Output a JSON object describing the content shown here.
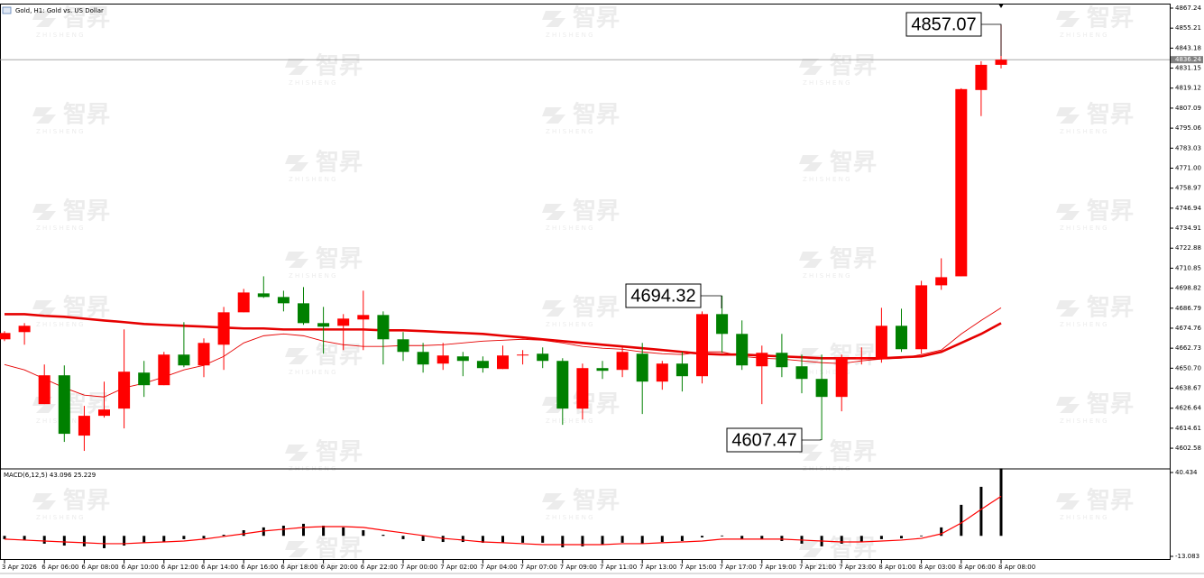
{
  "watermark": {
    "logo": "智昇",
    "tagline": "Z H I S H E N G"
  },
  "chart_data": [
    {
      "type": "candlestick",
      "title": "Gold, H1: Gold vs. US Dollar",
      "categories": [
        "3 Apr 2026",
        null,
        "6 Apr 06:00",
        null,
        "6 Apr 08:00",
        null,
        "6 Apr 10:00",
        null,
        "6 Apr 12:00",
        null,
        "6 Apr 14:00",
        null,
        "6 Apr 16:00",
        null,
        "6 Apr 18:00",
        null,
        "6 Apr 20:00",
        null,
        "6 Apr 22:00",
        null,
        "7 Apr 00:00",
        null,
        "7 Apr 02:00",
        null,
        "7 Apr 04:00",
        null,
        "7 Apr 07:00",
        null,
        "7 Apr 09:00",
        null,
        "7 Apr 11:00",
        null,
        "7 Apr 13:00",
        null,
        "7 Apr 15:00",
        null,
        "7 Apr 17:00",
        null,
        "7 Apr 19:00",
        null,
        "7 Apr 21:00",
        null,
        "7 Apr 23:00",
        null,
        "8 Apr 01:00",
        null,
        "8 Apr 03:00",
        null,
        "8 Apr 06:00",
        null,
        "8 Apr 08:00"
      ],
      "open": [
        4668.08,
        4672.41,
        4629.11,
        4646.43,
        4610.17,
        4622.08,
        4626.41,
        4648.05,
        4640.48,
        4658.88,
        4652.38,
        4664.83,
        4684.31,
        4695.68,
        4693.52,
        4689.73,
        4677.82,
        4676.2,
        4679.99,
        4682.69,
        4668.08,
        4660.5,
        4653.47,
        4657.8,
        4655.09,
        4650.22,
        4658.34,
        4659.42,
        4655.09,
        4626.41,
        4650.76,
        4649.68,
        4659.42,
        4642.64,
        4653.47,
        4645.89,
        4683.23,
        4671.33,
        4651.84,
        4659.96,
        4651.84,
        4644.27,
        4633.44,
        4656.17,
        4656.17,
        4676.2,
        4662.13,
        4700.55,
        4705.96,
        4817.99,
        4833.14
      ],
      "high": [
        4672.95,
        4677.82,
        4652.93,
        4652.38,
        4628.03,
        4642.64,
        4674.03,
        4655.09,
        4660.5,
        4678.36,
        4668.62,
        4687.56,
        4698.39,
        4705.96,
        4697.3,
        4699.47,
        4687.56,
        4683.23,
        4697.3,
        4684.86,
        4672.41,
        4665.91,
        4665.91,
        4660.5,
        4657.8,
        4664.29,
        4661.58,
        4663.21,
        4656.71,
        4653.47,
        4655.09,
        4663.21,
        4665.91,
        4655.09,
        4660.5,
        4684.86,
        4694.32,
        4679.44,
        4664.29,
        4671.33,
        4658.88,
        4658.88,
        4658.88,
        4663.21,
        4687.02,
        4686.48,
        4703.26,
        4716.79,
        4819.07,
        4835.31,
        4857.07
      ],
      "low": [
        4667.0,
        4664.83,
        4629.11,
        4606.38,
        4600.97,
        4620.99,
        4614.5,
        4633.44,
        4640.48,
        4651.3,
        4645.35,
        4649.68,
        4684.31,
        4692.97,
        4684.86,
        4676.74,
        4659.42,
        4661.58,
        4661.58,
        4652.93,
        4655.09,
        4648.05,
        4649.68,
        4645.89,
        4648.05,
        4650.22,
        4652.93,
        4650.76,
        4616.66,
        4619.91,
        4644.27,
        4645.35,
        4623.16,
        4637.77,
        4636.69,
        4641.56,
        4659.96,
        4649.68,
        4629.11,
        4645.35,
        4635.61,
        4607.47,
        4624.78,
        4652.93,
        4654.01,
        4660.5,
        4659.42,
        4697.84,
        4705.96,
        4802.3,
        4830.98
      ],
      "close": [
        4671.87,
        4676.2,
        4646.43,
        4611.25,
        4622.08,
        4625.87,
        4648.6,
        4640.48,
        4658.88,
        4652.38,
        4665.91,
        4684.31,
        4696.22,
        4693.52,
        4689.73,
        4677.82,
        4675.66,
        4680.53,
        4682.69,
        4668.08,
        4660.5,
        4652.93,
        4658.34,
        4655.09,
        4650.76,
        4658.34,
        4658.88,
        4655.09,
        4626.41,
        4650.76,
        4649.14,
        4660.5,
        4642.64,
        4653.47,
        4645.89,
        4683.23,
        4671.33,
        4652.38,
        4659.96,
        4651.3,
        4644.27,
        4633.44,
        4657.25,
        4657.25,
        4676.2,
        4662.13,
        4700.55,
        4705.42,
        4818.53,
        4833.14,
        4836.24
      ],
      "bull_color": "#ff0000",
      "bear_color": "#008000",
      "series": [
        {
          "color": "#e60000",
          "values": [
            4683.2,
            4683.2,
            4682.2,
            4681.6,
            4680.5,
            4679.4,
            4678.4,
            4677.3,
            4676.7,
            4676.2,
            4675.7,
            4675.1,
            4674.6,
            4674.6,
            4674.0,
            4674.0,
            4674.0,
            4674.0,
            4674.0,
            4673.5,
            4673.5,
            4673.0,
            4672.4,
            4671.9,
            4671.3,
            4670.2,
            4669.2,
            4668.1,
            4667.0,
            4665.9,
            4664.8,
            4663.8,
            4662.7,
            4661.6,
            4660.5,
            4659.4,
            4658.9,
            4658.9,
            4658.3,
            4657.8,
            4657.3,
            4656.7,
            4656.7,
            4656.7,
            4656.7,
            4657.3,
            4657.8,
            4660.5,
            4665.9,
            4671.3,
            4677.8
          ]
        },
        {
          "color": "#e60000",
          "values": [
            4652.9,
            4649.7,
            4644.3,
            4638.9,
            4634.5,
            4633.4,
            4638.9,
            4641.6,
            4645.4,
            4649.7,
            4652.4,
            4657.8,
            4665.9,
            4670.2,
            4671.3,
            4670.2,
            4667.0,
            4664.8,
            4663.8,
            4663.8,
            4664.3,
            4664.3,
            4664.8,
            4665.9,
            4667.0,
            4667.5,
            4668.1,
            4667.5,
            4665.9,
            4663.8,
            4662.7,
            4662.1,
            4660.5,
            4659.4,
            4658.9,
            4660.5,
            4660.5,
            4657.8,
            4656.7,
            4656.2,
            4655.1,
            4654.0,
            4653.5,
            4655.1,
            4656.2,
            4656.7,
            4658.9,
            4661.6,
            4671.3,
            4679.4,
            4687.0
          ]
        }
      ],
      "ylim": [
        4590.69,
        4869.41
      ],
      "yticks": [
        4867.24,
        4855.21,
        4843.18,
        4831.15,
        4819.12,
        4807.09,
        4795.06,
        4783.03,
        {
          "value": 4771,
          "label": "4771.00"
        },
        4758.97,
        4746.94,
        4734.91,
        4722.88,
        4710.85,
        4698.82,
        4686.79,
        4674.76,
        4662.73,
        {
          "value": 4650.7,
          "label": "4650.70"
        },
        4638.67,
        4626.64,
        4614.61,
        4602.58
      ],
      "current_price": 4836.24,
      "annotations": [
        4857.07,
        4694.32,
        4607.47
      ]
    },
    {
      "type": "macd",
      "title": "MACD(6,12,5) 43.096 25.229",
      "values": [
        -2.1,
        -2.7,
        -5.0,
        -6.2,
        -6.7,
        -7.9,
        -6.2,
        -4.4,
        -3.9,
        -2.1,
        -1.6,
        0.7,
        3.6,
        5.4,
        6.5,
        7.7,
        6.5,
        5.4,
        3.6,
        0.7,
        -2.1,
        -3.3,
        -3.9,
        -3.9,
        -4.4,
        -4.4,
        -4.4,
        -4.4,
        -7.3,
        -6.7,
        -5.6,
        -4.4,
        -5.0,
        -3.9,
        -3.3,
        -1.0,
        0.2,
        -2.1,
        -2.1,
        -3.3,
        -5.0,
        -6.7,
        -5.0,
        -3.9,
        -2.1,
        -1.6,
        0.2,
        5.4,
        19.8,
        31.3,
        43.096
      ],
      "color": "#000000",
      "series": [
        {
          "color": "#ff0000",
          "values": [
            -2.1,
            -2.7,
            -3.3,
            -3.9,
            -4.4,
            -5.0,
            -5.0,
            -4.4,
            -3.9,
            -3.3,
            -2.1,
            -0.4,
            1.3,
            3.1,
            4.2,
            5.4,
            5.9,
            5.9,
            5.4,
            3.6,
            1.9,
            0.2,
            -1.6,
            -2.7,
            -3.9,
            -4.4,
            -5.0,
            -5.6,
            -5.6,
            -5.6,
            -5.6,
            -5.0,
            -5.0,
            -4.4,
            -3.9,
            -3.3,
            -2.1,
            -2.1,
            -2.1,
            -2.1,
            -2.7,
            -3.3,
            -3.9,
            -3.9,
            -3.3,
            -2.7,
            -1.6,
            1.3,
            8.2,
            16.9,
            25.229
          ]
        }
      ],
      "ylim": [
        -15.39,
        42.16
      ],
      "yticks": [
        40.434,
        -13.083
      ]
    }
  ]
}
